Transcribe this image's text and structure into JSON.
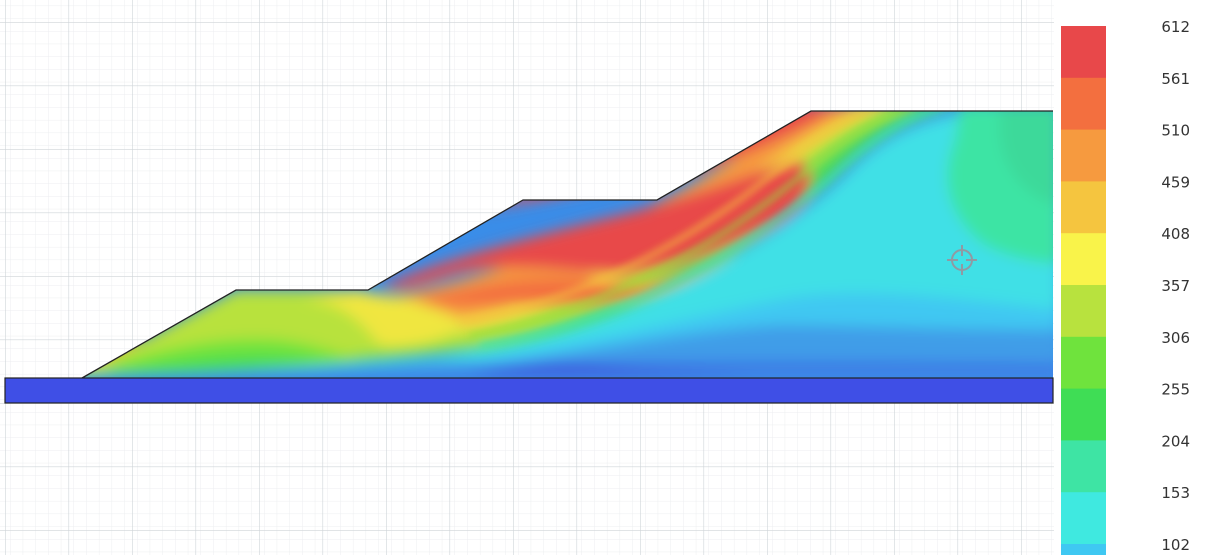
{
  "legend": {
    "labels": [
      "612",
      "561",
      "510",
      "459",
      "408",
      "357",
      "306",
      "255",
      "204",
      "153",
      "102"
    ],
    "colors": [
      "#e8484a",
      "#f36f3f",
      "#f69a3f",
      "#f5c53f",
      "#f9f34a",
      "#b8e23e",
      "#6fe33d",
      "#3fdd55",
      "#3ee4a4",
      "#3fe9e0",
      "#3fc8f2",
      "#3a8de8"
    ]
  },
  "palette": {
    "grid_major": "#cfd4d8",
    "grid_minor": "#eceef0",
    "foundation_fill": "#3f4fe6",
    "outline": "#222222",
    "crosshair": "#8f9aa3"
  },
  "icons": {
    "cursor": "crosshair-cursor-icon"
  }
}
